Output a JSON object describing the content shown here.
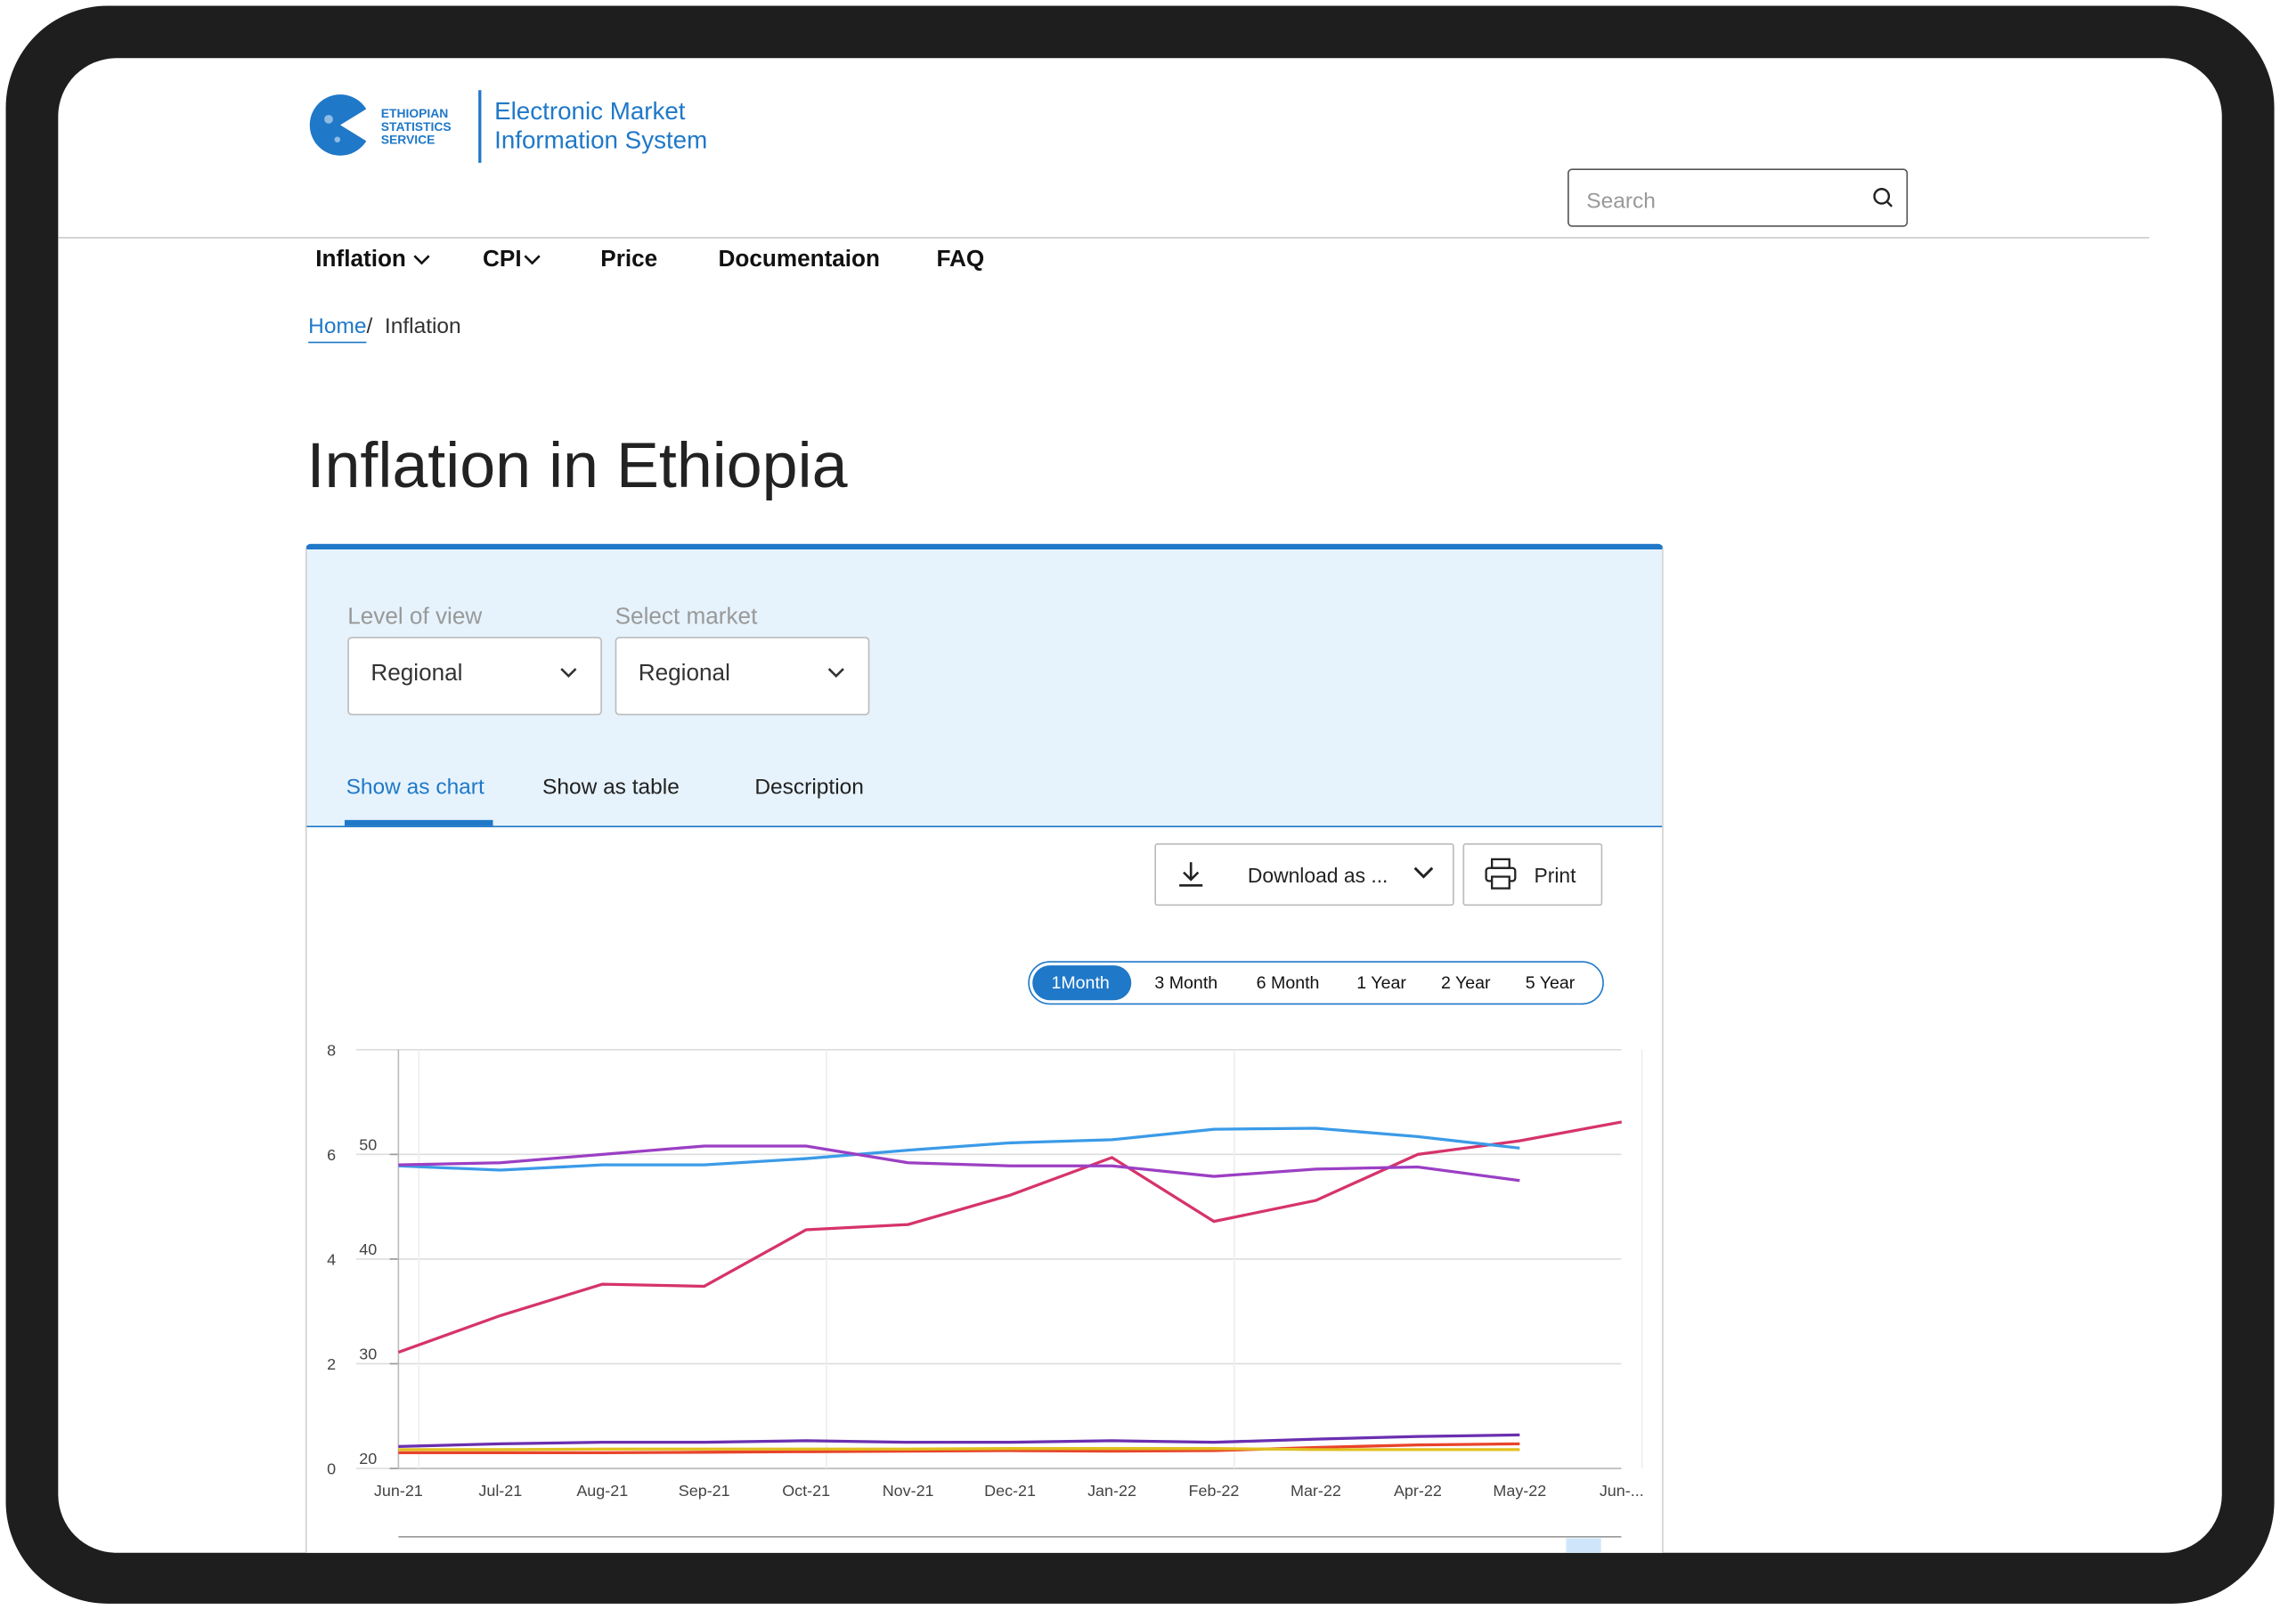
{
  "header": {
    "logo_text": [
      "ETHIOPIAN",
      "STATISTICS",
      "SERVICE"
    ],
    "site_title": [
      "Electronic Market",
      "Information System"
    ]
  },
  "nav": [
    "Inflation",
    "CPI",
    "Price",
    "Documentaion",
    "FAQ"
  ],
  "search_placeholder": "Search",
  "breadcrumb": {
    "items": [
      "Home",
      "Inflation"
    ],
    "separator": "/"
  },
  "page_title": "Inflation in Ethiopia",
  "filters": [
    {
      "label": "Level of view",
      "value": "Regional"
    },
    {
      "label": "Select market",
      "value": "Regional"
    }
  ],
  "tabs": [
    "Show as chart",
    "Show as table",
    "Description"
  ],
  "actions": [
    "Download as ...",
    "Print"
  ],
  "ranges": [
    "1Month",
    "3 Month",
    "6 Month",
    "1 Year",
    "2 Year",
    "5 Year"
  ],
  "chart_data": {
    "type": "line",
    "categories": [
      "Jun-21",
      "Jul-21",
      "Aug-21",
      "Sep-21",
      "Oct-21",
      "Nov-21",
      "Dec-21",
      "Jan-22",
      "Feb-22",
      "Mar-22",
      "Apr-22",
      "May-22",
      "Jun-..."
    ],
    "ylim": [
      0,
      8
    ],
    "yticks": [
      0,
      2,
      4,
      6,
      8
    ],
    "y2lim": [
      20,
      60
    ],
    "y2ticks": [
      20,
      30,
      40,
      50
    ],
    "grid": true,
    "series": [
      {
        "color": "#d6336c",
        "axis": "y2",
        "values": [
          31.1,
          34.6,
          37.6,
          37.4,
          42.8,
          43.3,
          46.1,
          49.7,
          43.6,
          45.6,
          50.0,
          51.3,
          53.1
        ]
      },
      {
        "color": "#3b9be8",
        "axis": "y2",
        "values": [
          48.9,
          48.5,
          49.0,
          49.0,
          49.6,
          50.4,
          51.1,
          51.4,
          52.4,
          52.5,
          51.7,
          50.6,
          null
        ]
      },
      {
        "color": "#9b3fc4",
        "axis": "y2",
        "values": [
          49.0,
          49.2,
          50.0,
          50.8,
          50.8,
          49.2,
          48.9,
          48.9,
          47.9,
          48.6,
          48.8,
          47.5,
          null
        ]
      },
      {
        "color": "#6a2fb0",
        "values": [
          0.42,
          0.47,
          0.5,
          0.5,
          0.53,
          0.5,
          0.5,
          0.53,
          0.5,
          0.56,
          0.61,
          0.64,
          null
        ]
      },
      {
        "color": "#e8442a",
        "values": [
          0.3,
          0.3,
          0.3,
          0.31,
          0.32,
          0.33,
          0.34,
          0.33,
          0.34,
          0.4,
          0.45,
          0.47,
          null
        ]
      },
      {
        "color": "#e0c020",
        "values": [
          0.36,
          0.36,
          0.37,
          0.37,
          0.37,
          0.37,
          0.38,
          0.38,
          0.38,
          0.36,
          0.36,
          0.36,
          null
        ]
      }
    ]
  }
}
